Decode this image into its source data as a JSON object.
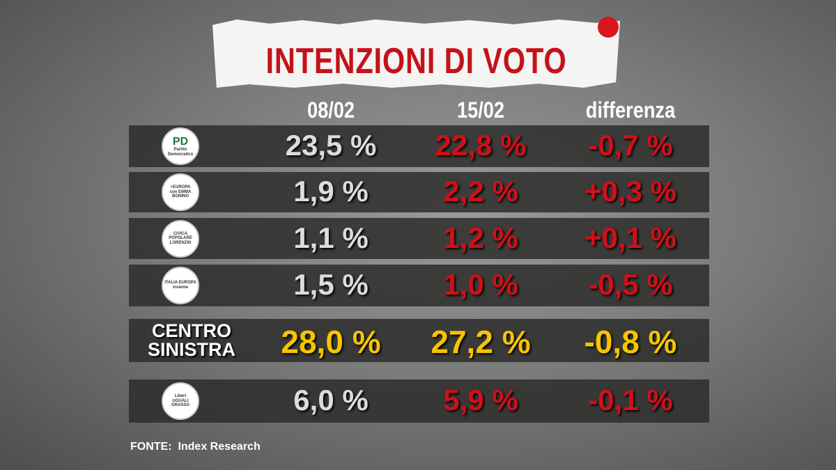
{
  "title": "INTENZIONI DI VOTO",
  "table": {
    "columns": [
      "08/02",
      "15/02",
      "differenza"
    ],
    "rows": [
      {
        "logo": [
          "PD",
          "Partito Democratico"
        ],
        "cells": [
          "23,5 %",
          "22,8 %",
          "-0,7 %"
        ]
      },
      {
        "logo": [
          "+EUROPA",
          "con EMMA BONINO"
        ],
        "cells": [
          "1,9 %",
          "2,2 %",
          "+0,3 %"
        ]
      },
      {
        "logo": [
          "CIVICA POPOLARE",
          "LORENZIN"
        ],
        "cells": [
          "1,1 %",
          "1,2 %",
          "+0,1 %"
        ]
      },
      {
        "logo": [
          "ITALIA EUROPA",
          "insieme"
        ],
        "cells": [
          "1,5 %",
          "1,0 %",
          "-0,5 %"
        ]
      },
      {
        "label": [
          "CENTRO",
          "SINISTRA"
        ],
        "cells": [
          "28,0 %",
          "27,2 %",
          "-0,8 %"
        ]
      },
      {
        "logo": [
          "Liberi",
          "UGUALI",
          "GRASSO"
        ],
        "cells": [
          "6,0 %",
          "5,9 %",
          "-0,1 %"
        ]
      }
    ]
  },
  "source": {
    "label": "FONTE:",
    "text": "Index Research"
  }
}
